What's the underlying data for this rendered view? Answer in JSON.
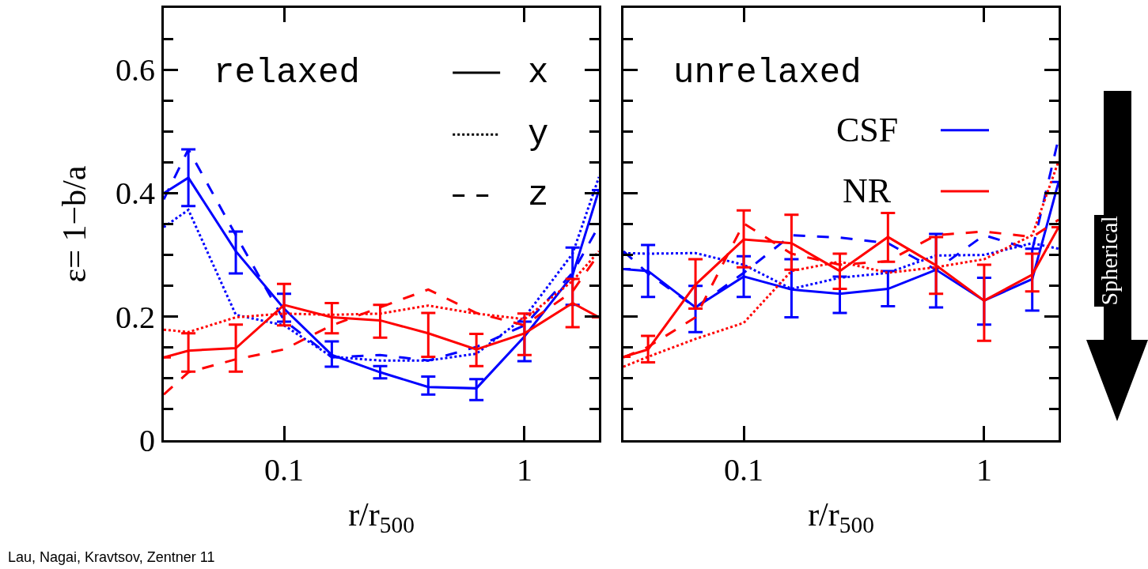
{
  "chart_data": [
    {
      "type": "line",
      "ylabel": "ε= 1−b/a",
      "xlabel": "r/r$_{500}$",
      "log": "x",
      "xlim": [
        0.0316,
        2.04
      ],
      "xticks": [
        0.1,
        1
      ],
      "ylim": [
        0,
        0.7
      ],
      "yticks": [
        0,
        0.2,
        0.4,
        0.6
      ],
      "marker": "none",
      "annotations": [
        "relaxed",
        "x",
        "y",
        "z",
        "Lau, Nagai, Kravtsov, Zentner 11"
      ],
      "x": [
        0.0316,
        0.04,
        0.063,
        0.1,
        0.158,
        0.251,
        0.398,
        0.631,
        1.0,
        1.585,
        2.04
      ],
      "series": [
        {
          "color": "#0000ff",
          "line_style": "solid",
          "values": [
            0.4,
            0.425,
            0.306,
            0.213,
            0.138,
            0.11,
            0.086,
            0.084,
            0.168,
            0.267,
            0.405
          ],
          "errors": [
            null,
            [
              0.379,
              0.471
            ],
            [
              0.27,
              0.338
            ],
            [
              0.192,
              0.237
            ],
            [
              0.119,
              0.16
            ],
            [
              0.1,
              0.12
            ],
            [
              0.074,
              0.103
            ],
            [
              0.065,
              0.099
            ],
            [
              0.128,
              0.192
            ],
            [
              0.219,
              0.312
            ],
            null
          ]
        },
        {
          "color": "#0000ff",
          "line_style": "dotted",
          "values": [
            0.345,
            0.373,
            0.203,
            0.186,
            0.135,
            0.129,
            0.129,
            0.14,
            0.199,
            0.302,
            0.426
          ]
        },
        {
          "color": "#0000ff",
          "line_style": "dashed",
          "values": [
            0.39,
            0.471,
            0.332,
            0.194,
            0.134,
            0.138,
            0.129,
            0.151,
            0.186,
            0.271,
            0.347
          ]
        },
        {
          "color": "#ff0000",
          "line_style": "solid",
          "values": [
            0.134,
            0.145,
            0.149,
            0.219,
            0.199,
            0.194,
            0.173,
            0.147,
            0.173,
            0.222,
            0.199
          ],
          "errors": [
            null,
            [
              0.111,
              0.173
            ],
            [
              0.111,
              0.187
            ],
            [
              0.186,
              0.253
            ],
            [
              0.173,
              0.222
            ],
            [
              0.166,
              0.219
            ],
            [
              0.135,
              0.206
            ],
            [
              0.12,
              0.172
            ],
            [
              0.138,
              0.205
            ],
            [
              0.183,
              0.261
            ],
            null
          ]
        },
        {
          "color": "#ff0000",
          "line_style": "dotted",
          "values": [
            0.179,
            0.175,
            0.199,
            0.205,
            0.203,
            0.205,
            0.218,
            0.205,
            0.196,
            0.258,
            0.306
          ]
        },
        {
          "color": "#ff0000",
          "line_style": "dashed",
          "values": [
            0.074,
            0.11,
            0.131,
            0.147,
            0.186,
            0.215,
            0.244,
            0.206,
            0.186,
            0.241,
            0.302
          ]
        }
      ]
    },
    {
      "type": "line",
      "xlabel": "r/r$_{500}$",
      "log": "x",
      "xlim": [
        0.0316,
        2.04
      ],
      "xticks": [
        0.1,
        1
      ],
      "ylim": [
        0,
        0.7
      ],
      "yticks": [
        0,
        0.2,
        0.4,
        0.6
      ],
      "tick_labels": "x",
      "marker": "none",
      "annotations": [
        "unrelaxed",
        "CSF",
        "NR",
        "Spherical"
      ],
      "x": [
        0.0316,
        0.04,
        0.063,
        0.1,
        0.158,
        0.251,
        0.398,
        0.631,
        1.0,
        1.585,
        2.04
      ],
      "series": [
        {
          "color": "#0000ff",
          "line_style": "solid",
          "values": [
            0.277,
            0.274,
            0.215,
            0.265,
            0.244,
            0.237,
            0.245,
            0.276,
            0.226,
            0.261,
            0.418
          ],
          "errors": [
            null,
            [
              0.232,
              0.316
            ],
            [
              0.175,
              0.25
            ],
            [
              0.232,
              0.298
            ],
            [
              0.199,
              0.293
            ],
            [
              0.206,
              0.265
            ],
            [
              0.217,
              0.274
            ],
            [
              0.215,
              0.334
            ],
            [
              0.187,
              0.263
            ],
            [
              0.21,
              0.31
            ],
            null
          ]
        },
        {
          "color": "#0000ff",
          "line_style": "dotted",
          "values": [
            0.303,
            0.302,
            0.303,
            0.284,
            0.245,
            0.263,
            0.271,
            0.299,
            0.3,
            0.319,
            0.31
          ]
        },
        {
          "color": "#0000ff",
          "line_style": "dashed",
          "values": [
            0.306,
            0.27,
            0.215,
            0.271,
            0.332,
            0.328,
            0.319,
            0.276,
            0.332,
            0.308,
            0.489
          ]
        },
        {
          "color": "#ff0000",
          "line_style": "solid",
          "values": [
            0.135,
            0.147,
            0.252,
            0.325,
            0.319,
            0.274,
            0.329,
            0.283,
            0.226,
            0.268,
            0.345
          ],
          "errors": [
            null,
            [
              0.126,
              0.169
            ],
            [
              0.213,
              0.293
            ],
            [
              0.28,
              0.372
            ],
            [
              0.276,
              0.365
            ],
            [
              0.245,
              0.302
            ],
            [
              0.289,
              0.368
            ],
            [
              0.237,
              0.329
            ],
            [
              0.161,
              0.284
            ],
            [
              0.241,
              0.302
            ],
            null
          ]
        },
        {
          "color": "#ff0000",
          "line_style": "dotted",
          "values": [
            0.119,
            0.135,
            0.164,
            0.19,
            0.274,
            0.289,
            0.271,
            0.28,
            0.293,
            0.332,
            0.452
          ]
        },
        {
          "color": "#ff0000",
          "line_style": "dashed",
          "values": [
            0.134,
            0.151,
            0.199,
            0.351,
            0.302,
            0.284,
            0.29,
            0.332,
            0.338,
            0.329,
            0.357
          ]
        }
      ]
    }
  ]
}
